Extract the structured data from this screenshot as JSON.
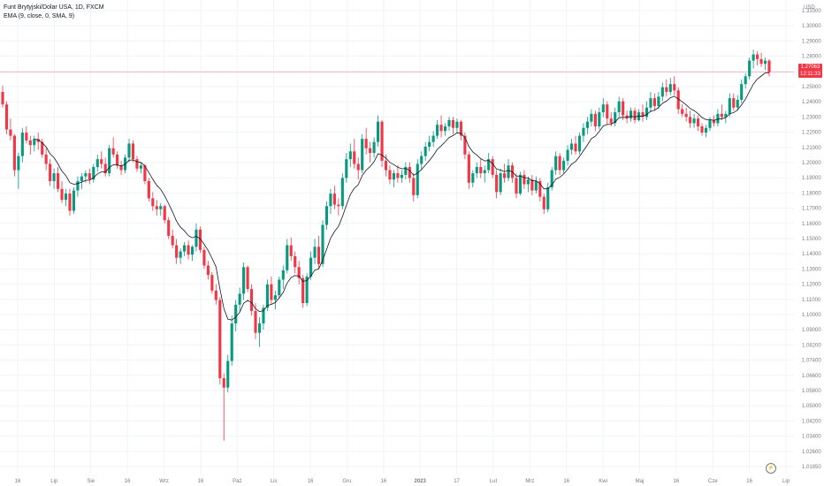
{
  "legend": {
    "symbol": "Funt Brytyjski/Dolar USA, 1D, FXCM",
    "indicator": "EMA (9, close, 0, SMA, 9)"
  },
  "price_tag": {
    "price": "1.27063",
    "countdown": "12:11:33"
  },
  "logo_icon": "lightning-icon",
  "colors": {
    "up": "#089981",
    "down": "#f23645",
    "ema": "#131722",
    "grid": "#f0f3fa",
    "price_line": "#f23645",
    "axis_text": "#787b86"
  },
  "chart_data": {
    "type": "candlestick",
    "currency": "USD",
    "ylim": [
      1.0185,
      1.31
    ],
    "y_ticks": [
      "1.31000",
      "1.30000",
      "1.29000",
      "1.28000",
      "1.26000",
      "1.25000",
      "1.24000",
      "1.23000",
      "1.22000",
      "1.21000",
      "1.20000",
      "1.19000",
      "1.18000",
      "1.17000",
      "1.16000",
      "1.15000",
      "1.14000",
      "1.13000",
      "1.12000",
      "1.11000",
      "1.10000",
      "1.09000",
      "1.08200",
      "1.07400",
      "1.06600",
      "1.05800",
      "1.05000",
      "1.04200",
      "1.03400",
      "1.02600",
      "1.01850"
    ],
    "x_ticks": [
      "16",
      "Lip",
      "Sie",
      "16",
      "Wrz",
      "16",
      "Paź",
      "Lis",
      "16",
      "Gru",
      "16",
      "2023",
      "17",
      "Lut",
      "Mrz",
      "16",
      "Kwi",
      "Maj",
      "16",
      "Cze",
      "16",
      "Lip"
    ],
    "last_price": 1.27063,
    "grid": true,
    "ema_period": 9,
    "candles": [
      [
        1.258,
        1.262,
        1.248,
        1.25
      ],
      [
        1.25,
        1.252,
        1.231,
        1.234
      ],
      [
        1.234,
        1.241,
        1.227,
        1.23
      ],
      [
        1.23,
        1.231,
        1.204,
        1.208
      ],
      [
        1.208,
        1.219,
        1.196,
        1.217
      ],
      [
        1.217,
        1.235,
        1.213,
        1.232
      ],
      [
        1.232,
        1.236,
        1.225,
        1.227
      ],
      [
        1.227,
        1.23,
        1.218,
        1.224
      ],
      [
        1.224,
        1.23,
        1.22,
        1.228
      ],
      [
        1.228,
        1.232,
        1.221,
        1.226
      ],
      [
        1.226,
        1.228,
        1.216,
        1.218
      ],
      [
        1.218,
        1.222,
        1.208,
        1.212
      ],
      [
        1.212,
        1.215,
        1.198,
        1.201
      ],
      [
        1.201,
        1.209,
        1.196,
        1.206
      ],
      [
        1.206,
        1.21,
        1.194,
        1.196
      ],
      [
        1.196,
        1.201,
        1.187,
        1.189
      ],
      [
        1.189,
        1.196,
        1.185,
        1.193
      ],
      [
        1.193,
        1.196,
        1.179,
        1.182
      ],
      [
        1.182,
        1.197,
        1.18,
        1.195
      ],
      [
        1.195,
        1.204,
        1.191,
        1.201
      ],
      [
        1.201,
        1.206,
        1.196,
        1.204
      ],
      [
        1.204,
        1.208,
        1.2,
        1.206
      ],
      [
        1.206,
        1.209,
        1.199,
        1.202
      ],
      [
        1.202,
        1.212,
        1.2,
        1.21
      ],
      [
        1.21,
        1.218,
        1.207,
        1.215
      ],
      [
        1.215,
        1.22,
        1.209,
        1.212
      ],
      [
        1.212,
        1.216,
        1.204,
        1.206
      ],
      [
        1.206,
        1.224,
        1.204,
        1.222
      ],
      [
        1.222,
        1.229,
        1.216,
        1.218
      ],
      [
        1.218,
        1.22,
        1.209,
        1.211
      ],
      [
        1.211,
        1.214,
        1.205,
        1.208
      ],
      [
        1.208,
        1.218,
        1.206,
        1.216
      ],
      [
        1.216,
        1.228,
        1.213,
        1.225
      ],
      [
        1.225,
        1.227,
        1.213,
        1.215
      ],
      [
        1.215,
        1.217,
        1.207,
        1.209
      ],
      [
        1.209,
        1.213,
        1.206,
        1.211
      ],
      [
        1.211,
        1.212,
        1.199,
        1.201
      ],
      [
        1.201,
        1.203,
        1.188,
        1.19
      ],
      [
        1.19,
        1.194,
        1.182,
        1.185
      ],
      [
        1.185,
        1.189,
        1.179,
        1.183
      ],
      [
        1.183,
        1.187,
        1.179,
        1.185
      ],
      [
        1.185,
        1.186,
        1.174,
        1.176
      ],
      [
        1.176,
        1.178,
        1.164,
        1.166
      ],
      [
        1.166,
        1.17,
        1.158,
        1.16
      ],
      [
        1.16,
        1.164,
        1.148,
        1.152
      ],
      [
        1.152,
        1.158,
        1.148,
        1.156
      ],
      [
        1.156,
        1.162,
        1.153,
        1.16
      ],
      [
        1.16,
        1.163,
        1.151,
        1.154
      ],
      [
        1.154,
        1.16,
        1.15,
        1.159
      ],
      [
        1.159,
        1.174,
        1.156,
        1.17
      ],
      [
        1.17,
        1.172,
        1.155,
        1.157
      ],
      [
        1.157,
        1.159,
        1.145,
        1.147
      ],
      [
        1.147,
        1.15,
        1.138,
        1.141
      ],
      [
        1.141,
        1.143,
        1.129,
        1.131
      ],
      [
        1.131,
        1.135,
        1.122,
        1.125
      ],
      [
        1.125,
        1.127,
        1.071,
        1.075
      ],
      [
        1.075,
        1.078,
        1.035,
        1.069
      ],
      [
        1.069,
        1.09,
        1.066,
        1.086
      ],
      [
        1.086,
        1.115,
        1.083,
        1.11
      ],
      [
        1.11,
        1.125,
        1.105,
        1.122
      ],
      [
        1.122,
        1.133,
        1.118,
        1.129
      ],
      [
        1.129,
        1.149,
        1.125,
        1.146
      ],
      [
        1.146,
        1.147,
        1.13,
        1.132
      ],
      [
        1.132,
        1.135,
        1.115,
        1.118
      ],
      [
        1.118,
        1.123,
        1.1,
        1.104
      ],
      [
        1.104,
        1.114,
        1.095,
        1.11
      ],
      [
        1.11,
        1.122,
        1.106,
        1.12
      ],
      [
        1.12,
        1.138,
        1.118,
        1.135
      ],
      [
        1.135,
        1.14,
        1.122,
        1.125
      ],
      [
        1.125,
        1.131,
        1.119,
        1.128
      ],
      [
        1.128,
        1.14,
        1.126,
        1.138
      ],
      [
        1.138,
        1.147,
        1.132,
        1.144
      ],
      [
        1.144,
        1.164,
        1.142,
        1.16
      ],
      [
        1.16,
        1.165,
        1.15,
        1.153
      ],
      [
        1.153,
        1.156,
        1.142,
        1.146
      ],
      [
        1.146,
        1.15,
        1.135,
        1.139
      ],
      [
        1.139,
        1.141,
        1.12,
        1.123
      ],
      [
        1.123,
        1.142,
        1.121,
        1.14
      ],
      [
        1.14,
        1.156,
        1.138,
        1.152
      ],
      [
        1.152,
        1.164,
        1.148,
        1.159
      ],
      [
        1.159,
        1.166,
        1.145,
        1.148
      ],
      [
        1.148,
        1.176,
        1.146,
        1.173
      ],
      [
        1.173,
        1.188,
        1.17,
        1.185
      ],
      [
        1.185,
        1.196,
        1.18,
        1.193
      ],
      [
        1.193,
        1.198,
        1.183,
        1.186
      ],
      [
        1.186,
        1.19,
        1.179,
        1.185
      ],
      [
        1.185,
        1.206,
        1.183,
        1.203
      ],
      [
        1.203,
        1.219,
        1.2,
        1.215
      ],
      [
        1.215,
        1.225,
        1.21,
        1.22
      ],
      [
        1.22,
        1.228,
        1.209,
        1.212
      ],
      [
        1.212,
        1.216,
        1.202,
        1.208
      ],
      [
        1.208,
        1.231,
        1.206,
        1.228
      ],
      [
        1.228,
        1.235,
        1.218,
        1.222
      ],
      [
        1.222,
        1.226,
        1.213,
        1.219
      ],
      [
        1.219,
        1.229,
        1.216,
        1.226
      ],
      [
        1.226,
        1.243,
        1.223,
        1.239
      ],
      [
        1.239,
        1.24,
        1.21,
        1.214
      ],
      [
        1.214,
        1.218,
        1.204,
        1.208
      ],
      [
        1.208,
        1.211,
        1.199,
        1.202
      ],
      [
        1.202,
        1.208,
        1.197,
        1.206
      ],
      [
        1.206,
        1.211,
        1.2,
        1.203
      ],
      [
        1.203,
        1.208,
        1.2,
        1.205
      ],
      [
        1.205,
        1.213,
        1.202,
        1.21
      ],
      [
        1.21,
        1.213,
        1.2,
        1.203
      ],
      [
        1.203,
        1.206,
        1.188,
        1.192
      ],
      [
        1.192,
        1.215,
        1.19,
        1.212
      ],
      [
        1.212,
        1.22,
        1.208,
        1.217
      ],
      [
        1.217,
        1.226,
        1.214,
        1.223
      ],
      [
        1.223,
        1.23,
        1.22,
        1.226
      ],
      [
        1.226,
        1.233,
        1.223,
        1.23
      ],
      [
        1.23,
        1.24,
        1.228,
        1.237
      ],
      [
        1.237,
        1.243,
        1.229,
        1.233
      ],
      [
        1.233,
        1.238,
        1.23,
        1.236
      ],
      [
        1.236,
        1.242,
        1.233,
        1.24
      ],
      [
        1.24,
        1.242,
        1.231,
        1.235
      ],
      [
        1.235,
        1.241,
        1.232,
        1.239
      ],
      [
        1.239,
        1.24,
        1.227,
        1.23
      ],
      [
        1.23,
        1.232,
        1.215,
        1.218
      ],
      [
        1.218,
        1.22,
        1.196,
        1.2
      ],
      [
        1.2,
        1.208,
        1.197,
        1.206
      ],
      [
        1.206,
        1.213,
        1.203,
        1.21
      ],
      [
        1.21,
        1.215,
        1.203,
        1.206
      ],
      [
        1.206,
        1.211,
        1.2,
        1.208
      ],
      [
        1.208,
        1.219,
        1.206,
        1.215
      ],
      [
        1.215,
        1.217,
        1.203,
        1.205
      ],
      [
        1.205,
        1.208,
        1.19,
        1.194
      ],
      [
        1.194,
        1.209,
        1.192,
        1.206
      ],
      [
        1.206,
        1.212,
        1.2,
        1.203
      ],
      [
        1.203,
        1.215,
        1.201,
        1.211
      ],
      [
        1.211,
        1.213,
        1.2,
        1.203
      ],
      [
        1.203,
        1.206,
        1.19,
        1.193
      ],
      [
        1.193,
        1.207,
        1.192,
        1.205
      ],
      [
        1.205,
        1.208,
        1.196,
        1.199
      ],
      [
        1.199,
        1.204,
        1.194,
        1.202
      ],
      [
        1.202,
        1.205,
        1.192,
        1.195
      ],
      [
        1.195,
        1.204,
        1.193,
        1.201
      ],
      [
        1.201,
        1.203,
        1.188,
        1.191
      ],
      [
        1.191,
        1.193,
        1.18,
        1.183
      ],
      [
        1.183,
        1.2,
        1.181,
        1.197
      ],
      [
        1.197,
        1.21,
        1.195,
        1.208
      ],
      [
        1.208,
        1.22,
        1.205,
        1.217
      ],
      [
        1.217,
        1.219,
        1.205,
        1.208
      ],
      [
        1.208,
        1.216,
        1.206,
        1.214
      ],
      [
        1.214,
        1.224,
        1.211,
        1.221
      ],
      [
        1.221,
        1.228,
        1.218,
        1.225
      ],
      [
        1.225,
        1.23,
        1.218,
        1.22
      ],
      [
        1.22,
        1.232,
        1.218,
        1.23
      ],
      [
        1.23,
        1.238,
        1.226,
        1.235
      ],
      [
        1.235,
        1.242,
        1.231,
        1.239
      ],
      [
        1.239,
        1.247,
        1.236,
        1.244
      ],
      [
        1.244,
        1.246,
        1.233,
        1.236
      ],
      [
        1.236,
        1.248,
        1.234,
        1.245
      ],
      [
        1.245,
        1.254,
        1.242,
        1.25
      ],
      [
        1.25,
        1.252,
        1.237,
        1.241
      ],
      [
        1.241,
        1.245,
        1.236,
        1.238
      ],
      [
        1.238,
        1.248,
        1.236,
        1.245
      ],
      [
        1.245,
        1.255,
        1.242,
        1.252
      ],
      [
        1.252,
        1.254,
        1.24,
        1.243
      ],
      [
        1.243,
        1.246,
        1.238,
        1.241
      ],
      [
        1.241,
        1.248,
        1.239,
        1.246
      ],
      [
        1.246,
        1.248,
        1.238,
        1.24
      ],
      [
        1.24,
        1.247,
        1.239,
        1.245
      ],
      [
        1.245,
        1.25,
        1.239,
        1.242
      ],
      [
        1.242,
        1.252,
        1.24,
        1.248
      ],
      [
        1.248,
        1.258,
        1.245,
        1.254
      ],
      [
        1.254,
        1.257,
        1.246,
        1.249
      ],
      [
        1.249,
        1.258,
        1.247,
        1.255
      ],
      [
        1.255,
        1.264,
        1.252,
        1.261
      ],
      [
        1.261,
        1.266,
        1.255,
        1.258
      ],
      [
        1.258,
        1.267,
        1.256,
        1.263
      ],
      [
        1.263,
        1.268,
        1.256,
        1.259
      ],
      [
        1.259,
        1.261,
        1.244,
        1.247
      ],
      [
        1.247,
        1.25,
        1.242,
        1.244
      ],
      [
        1.244,
        1.248,
        1.239,
        1.242
      ],
      [
        1.242,
        1.246,
        1.235,
        1.238
      ],
      [
        1.238,
        1.244,
        1.235,
        1.241
      ],
      [
        1.241,
        1.243,
        1.233,
        1.236
      ],
      [
        1.236,
        1.238,
        1.23,
        1.232
      ],
      [
        1.232,
        1.237,
        1.229,
        1.235
      ],
      [
        1.235,
        1.242,
        1.233,
        1.24
      ],
      [
        1.24,
        1.243,
        1.236,
        1.238
      ],
      [
        1.238,
        1.247,
        1.236,
        1.244
      ],
      [
        1.244,
        1.25,
        1.24,
        1.242
      ],
      [
        1.242,
        1.246,
        1.238,
        1.244
      ],
      [
        1.244,
        1.257,
        1.242,
        1.254
      ],
      [
        1.254,
        1.257,
        1.246,
        1.248
      ],
      [
        1.248,
        1.256,
        1.246,
        1.253
      ],
      [
        1.253,
        1.266,
        1.251,
        1.263
      ],
      [
        1.263,
        1.27,
        1.26,
        1.268
      ],
      [
        1.268,
        1.28,
        1.266,
        1.278
      ],
      [
        1.278,
        1.285,
        1.273,
        1.282
      ],
      [
        1.282,
        1.284,
        1.275,
        1.279
      ],
      [
        1.279,
        1.283,
        1.274,
        1.276
      ],
      [
        1.276,
        1.28,
        1.272,
        1.278
      ],
      [
        1.278,
        1.279,
        1.268,
        1.2706
      ]
    ]
  }
}
